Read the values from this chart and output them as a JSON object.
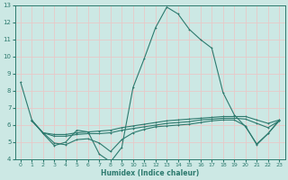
{
  "xlabel": "Humidex (Indice chaleur)",
  "bg_color": "#cce8e4",
  "grid_color": "#e8c8c8",
  "line_color": "#2d7a6e",
  "xlim": [
    -0.5,
    23.5
  ],
  "ylim": [
    4,
    13
  ],
  "xticks": [
    0,
    1,
    2,
    3,
    4,
    5,
    6,
    7,
    8,
    9,
    10,
    11,
    12,
    13,
    14,
    15,
    16,
    17,
    18,
    19,
    20,
    21,
    22,
    23
  ],
  "yticks": [
    4,
    5,
    6,
    7,
    8,
    9,
    10,
    11,
    12,
    13
  ],
  "line1_x": [
    0,
    1,
    2,
    3,
    4,
    5,
    6,
    7,
    8,
    9,
    10,
    11,
    12,
    13,
    14,
    15,
    16,
    17,
    18,
    19,
    20,
    21,
    22,
    23
  ],
  "line1_y": [
    8.5,
    6.3,
    5.5,
    4.8,
    5.0,
    5.7,
    5.6,
    4.3,
    3.85,
    4.7,
    8.2,
    9.9,
    11.7,
    12.9,
    12.5,
    11.6,
    11.0,
    10.5,
    7.9,
    6.6,
    5.9,
    4.9,
    5.5,
    6.3
  ],
  "line2_x": [
    1,
    2,
    3,
    4,
    5,
    6,
    7,
    8,
    9,
    10,
    11,
    12,
    13,
    14,
    15,
    16,
    17,
    18,
    19,
    20,
    21,
    22,
    23
  ],
  "line2_y": [
    6.25,
    5.55,
    5.45,
    5.45,
    5.55,
    5.6,
    5.65,
    5.7,
    5.85,
    5.95,
    6.05,
    6.15,
    6.25,
    6.3,
    6.35,
    6.4,
    6.45,
    6.5,
    6.5,
    6.5,
    6.3,
    6.1,
    6.3
  ],
  "line3_x": [
    1,
    2,
    3,
    4,
    5,
    6,
    7,
    8,
    9,
    10,
    11,
    12,
    13,
    14,
    15,
    16,
    17,
    18,
    19,
    20,
    21,
    22,
    23
  ],
  "line3_y": [
    6.25,
    5.55,
    4.95,
    4.85,
    5.15,
    5.2,
    4.95,
    4.45,
    5.15,
    5.55,
    5.75,
    5.9,
    5.95,
    6.0,
    6.05,
    6.15,
    6.25,
    6.3,
    6.3,
    5.95,
    4.85,
    5.5,
    6.25
  ],
  "line4_x": [
    1,
    2,
    3,
    4,
    5,
    6,
    7,
    8,
    9,
    10,
    11,
    12,
    13,
    14,
    15,
    16,
    17,
    18,
    19,
    20,
    21,
    22,
    23
  ],
  "line4_y": [
    6.25,
    5.55,
    5.35,
    5.35,
    5.45,
    5.5,
    5.5,
    5.55,
    5.7,
    5.8,
    5.9,
    6.0,
    6.1,
    6.15,
    6.2,
    6.3,
    6.35,
    6.4,
    6.4,
    6.35,
    6.1,
    5.85,
    6.25
  ]
}
